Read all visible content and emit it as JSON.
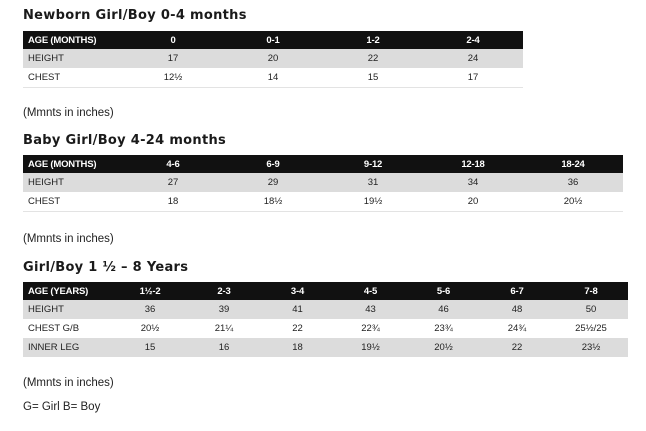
{
  "sections": [
    {
      "title": "Newborn Girl/Boy 0-4 months",
      "note": "(Mmnts in inches)",
      "columns": [
        "AGE (MONTHS)",
        "0",
        "0-1",
        "1-2",
        "2-4"
      ],
      "rows": [
        [
          "HEIGHT",
          "17",
          "20",
          "22",
          "24"
        ],
        [
          "CHEST",
          "12½",
          "14",
          "15",
          "17"
        ]
      ]
    },
    {
      "title": "Baby Girl/Boy 4-24 months",
      "note": "(Mmnts in inches)",
      "columns": [
        "AGE (MONTHS)",
        "4-6",
        "6-9",
        "9-12",
        "12-18",
        "18-24"
      ],
      "rows": [
        [
          "HEIGHT",
          "27",
          "29",
          "31",
          "34",
          "36"
        ],
        [
          "CHEST",
          "18",
          "18½",
          "19½",
          "20",
          "20½"
        ]
      ]
    },
    {
      "title": "Girl/Boy 1 ½  – 8 Years",
      "note": "(Mmnts in inches)",
      "columns": [
        "AGE (YEARS)",
        "1½-2",
        "2-3",
        "3-4",
        "4-5",
        "5-6",
        "6-7",
        "7-8"
      ],
      "rows": [
        [
          "HEIGHT",
          "36",
          "39",
          "41",
          "43",
          "46",
          "48",
          "50"
        ],
        [
          "CHEST G/B",
          "20½",
          "21¼",
          "22",
          "22¾",
          "23¾",
          "24¾",
          "25½/25"
        ],
        [
          "INNER LEG",
          "15",
          "16",
          "18",
          "19½",
          "20½",
          "22",
          "23½"
        ]
      ]
    }
  ],
  "legend": "G= Girl B= Boy"
}
